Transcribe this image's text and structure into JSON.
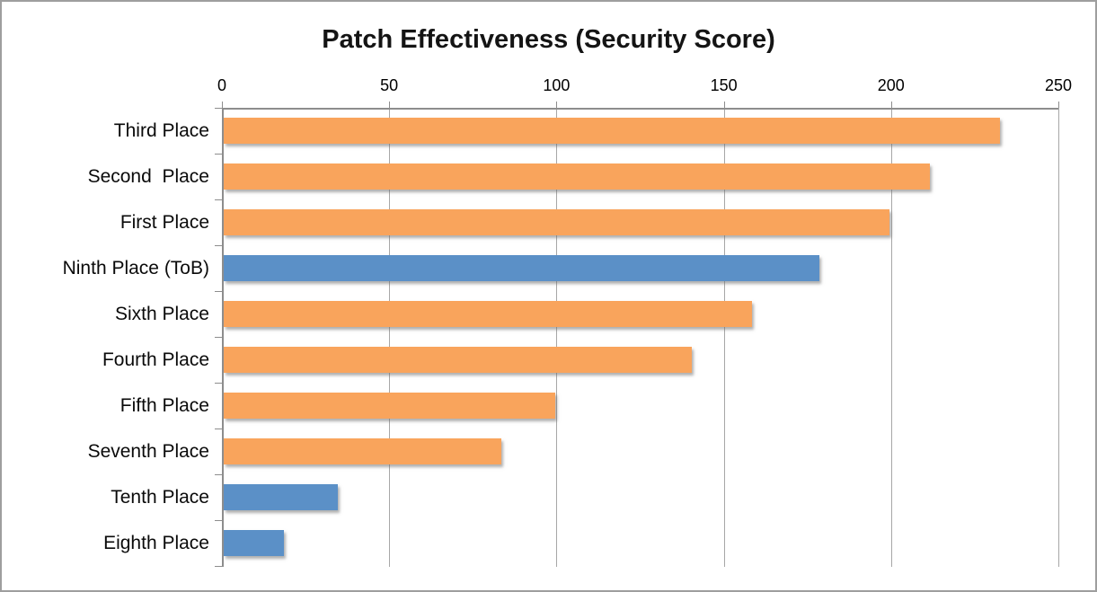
{
  "chart_data": {
    "type": "bar",
    "orientation": "horizontal",
    "title": "Patch Effectiveness (Security Score)",
    "categories": [
      "Third Place",
      "Second  Place",
      "First Place",
      "Ninth Place (ToB)",
      "Sixth Place",
      "Fourth Place",
      "Fifth Place",
      "Seventh Place",
      "Tenth Place",
      "Eighth Place"
    ],
    "values": [
      232,
      211,
      199,
      178,
      158,
      140,
      99,
      83,
      34,
      18
    ],
    "bar_colors": [
      "#f9a45c",
      "#f9a45c",
      "#f9a45c",
      "#5b90c7",
      "#f9a45c",
      "#f9a45c",
      "#f9a45c",
      "#f9a45c",
      "#5b90c7",
      "#5b90c7"
    ],
    "xlabel": "",
    "ylabel": "",
    "xlim": [
      0,
      250
    ],
    "xticks": [
      "0",
      "50",
      "100",
      "150",
      "200",
      "250"
    ],
    "axis_position": "top",
    "grid": true,
    "legend": false,
    "colors": {
      "orange_series": "#f9a45c",
      "blue_highlight": "#5b90c7",
      "gridline": "#a7a7a7",
      "axis": "#8d8d8d",
      "border": "#9e9e9e",
      "title_text": "#141414"
    }
  }
}
